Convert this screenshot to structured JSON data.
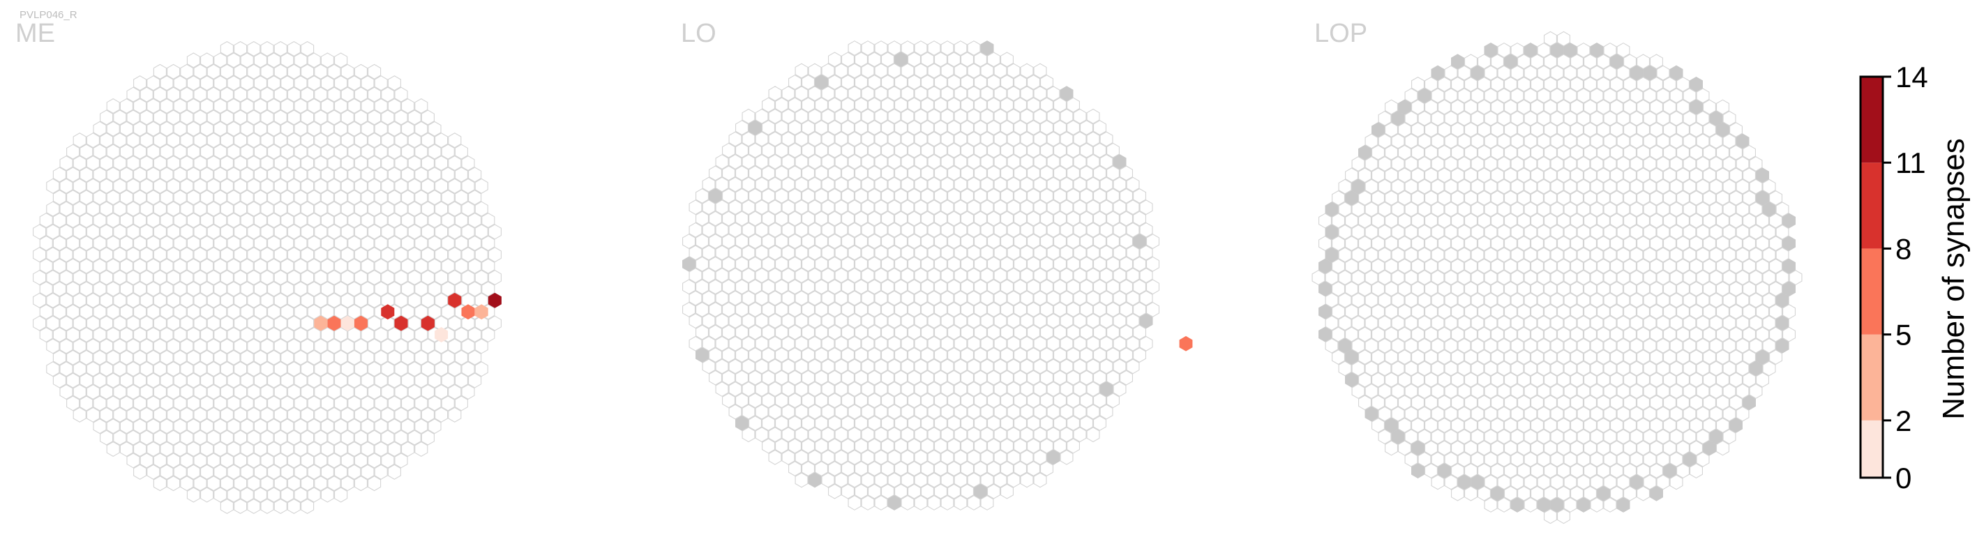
{
  "figure": {
    "id_label": "PVLP046_R",
    "panel_titles": [
      "ME",
      "LO",
      "LOP"
    ]
  },
  "colors": {
    "empty_column": "#d4d4d4",
    "no_data_fill": "#c8c8c8",
    "bins": [
      "#fde5dc",
      "#fcb498",
      "#fa7559",
      "#d8322d",
      "#a20f1a"
    ]
  },
  "colorbar": {
    "label": "Number of synapses",
    "ticks": [
      "0",
      "2",
      "5",
      "8",
      "11",
      "14"
    ]
  },
  "chart_data": {
    "type": "heatmap",
    "description_of_values": "hexagonal column grids; each filled hexagon = synapse count bin",
    "value_range": [
      0,
      14
    ],
    "bin_edges": [
      0,
      2,
      5,
      8,
      11,
      14
    ],
    "panels": [
      {
        "name": "ME",
        "grid": "hexagonal, approx 33 columns by 33 rows, circular outline",
        "nonzero_columns": [
          {
            "count": 13
          },
          {
            "count": 10
          },
          {
            "count": 10
          },
          {
            "count": 9
          },
          {
            "count": 9
          },
          {
            "count": 7
          },
          {
            "count": 7
          },
          {
            "count": 6
          },
          {
            "count": 4
          },
          {
            "count": 3
          },
          {
            "count": 1
          },
          {
            "count": 1
          }
        ]
      },
      {
        "name": "LO",
        "grid": "hexagonal, approx 34 columns by 35 rows, circular outline",
        "nonzero_columns": [
          {
            "count": 7
          }
        ],
        "no_data_columns": 17
      },
      {
        "name": "LOP",
        "grid": "hexagonal, approx 34 columns by 35 rows, circular outline",
        "nonzero_columns": [],
        "no_data_columns": 70
      }
    ]
  }
}
